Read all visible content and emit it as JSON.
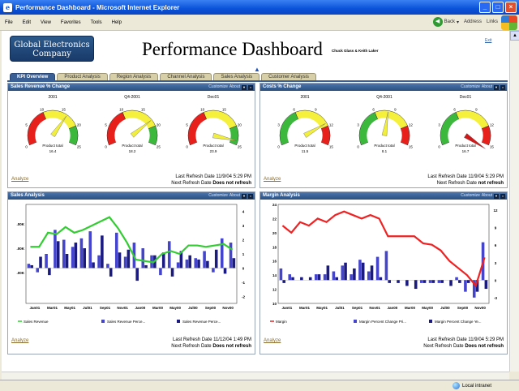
{
  "window": {
    "title": "Performance Dashboard - Microsoft Internet Explorer",
    "minimize": "_",
    "maximize": "□",
    "close": "×"
  },
  "menu": [
    "File",
    "Edit",
    "View",
    "Favorites",
    "Tools",
    "Help"
  ],
  "toolbar": {
    "back": "Back",
    "address": "Address",
    "links": "Links"
  },
  "status": {
    "zone": "Local intranet"
  },
  "page": {
    "logo": "Global Electronics Company",
    "title": "Performance Dashboard",
    "authors": "Chuck Glass & Keith Laker",
    "exit": "Exit",
    "tabs": [
      "KPI Overview",
      "Product Analysis",
      "Region Analysis",
      "Channel Analysis",
      "Sales Analysis",
      "Customer Analysis"
    ]
  },
  "panels": {
    "sales_rev": {
      "title": "Sales Revenue % Change",
      "customize": "Customize",
      "about": "About",
      "analyze": "Analyze",
      "refresh1": "Last Refresh Date 11/9/04 5:29 PM",
      "refresh2_prefix": "Next Refresh Date",
      "refresh2_bold": "Does not refresh"
    },
    "costs": {
      "title": "Costs % Change",
      "customize": "Customize",
      "about": "About",
      "analyze": "Analyze",
      "refresh1": "Last Refresh Date 11/9/04 5:29 PM",
      "refresh2_prefix": "Next Refresh Date",
      "refresh2_bold": "not refresh"
    },
    "sales_analysis": {
      "title": "Sales Analysis",
      "customize": "Customize",
      "about": "About",
      "analyze": "Analyze",
      "refresh1": "Last Refresh Date 11/12/04 1:49 PM",
      "refresh2_prefix": "Next Refresh Date",
      "refresh2_bold": "Does not refresh"
    },
    "margin_analysis": {
      "title": "Margin Analysis",
      "customize": "Customize",
      "about": "About",
      "analyze": "Analyze",
      "refresh1": "Last Refresh Date 11/9/04 5:29 PM",
      "refresh2_prefix": "Next Refresh Date",
      "refresh2_bold": "Does not refresh"
    }
  },
  "chart_data": [
    {
      "type": "gauge",
      "panel": "Sales Revenue % Change",
      "label": "2001",
      "ticks": [
        "0",
        "5",
        "10",
        "15",
        "20",
        "25"
      ],
      "caption": "Product total",
      "value": 16.4,
      "value_text": "16.4",
      "max": 25
    },
    {
      "type": "gauge",
      "panel": "Sales Revenue % Change",
      "label": "Q4-2001",
      "ticks": [
        "0",
        "5",
        "10",
        "15",
        "20",
        "25"
      ],
      "caption": "Product total",
      "value": 18.2,
      "value_text": "18.2",
      "max": 25
    },
    {
      "type": "gauge",
      "panel": "Sales Revenue % Change",
      "label": "Dec01",
      "ticks": [
        "0",
        "5",
        "10",
        "15",
        "20",
        "25"
      ],
      "caption": "Product total",
      "value": 23.9,
      "value_text": "23.9",
      "max": 25
    },
    {
      "type": "gauge",
      "panel": "Costs % Change",
      "label": "2001",
      "ticks": [
        "0",
        "3",
        "6",
        "9",
        "12",
        "15"
      ],
      "caption": "Product total",
      "value": 11.5,
      "value_text": "11.5",
      "max": 15
    },
    {
      "type": "gauge",
      "panel": "Costs % Change",
      "label": "Q4-2001",
      "ticks": [
        "0",
        "3",
        "6",
        "9",
        "12",
        "15"
      ],
      "caption": "Product total",
      "value": 8.1,
      "value_text": "8.1",
      "max": 15
    },
    {
      "type": "gauge",
      "panel": "Costs % Change",
      "label": "Dec01",
      "ticks": [
        "0",
        "3",
        "6",
        "9",
        "12",
        "15"
      ],
      "caption": "Product total",
      "value": 16.7,
      "value_text": "16.7",
      "max": 15
    },
    {
      "type": "bar+line",
      "panel": "Sales Analysis",
      "categories": [
        "Jan01",
        "Mar01",
        "May01",
        "Jul01",
        "Sep01",
        "Nov01",
        "Jan00",
        "Mar00",
        "May00",
        "Jul00",
        "Sep00",
        "Nov00"
      ],
      "left_ticks": [
        ".00K",
        ".00K",
        ".00K"
      ],
      "right_ticks": [
        "4",
        "3",
        "2",
        "1",
        "0",
        "-1",
        "-2"
      ],
      "ylim_right": [
        -2.5,
        4.5
      ],
      "line": {
        "name": "Sales Revenue",
        "color": "#33cc33",
        "values": [
          1.5,
          1.5,
          2.5,
          2.4,
          2.9,
          2.5,
          2.7,
          3.0,
          3.3,
          3.6,
          2.8,
          1.8,
          0.6,
          0.5,
          0.4,
          1.0,
          1.2,
          1.0,
          1.6,
          1.6,
          1.5,
          1.6,
          1.7,
          1.3
        ]
      },
      "bars1": {
        "name": "Sales Revenue Perce...",
        "color": "#4444cc",
        "values": [
          0.3,
          -0.3,
          1.0,
          2.7,
          2.0,
          1.5,
          2.1,
          2.6,
          0.9,
          0.3,
          2.5,
          0.8,
          1.8,
          1.4,
          0.9,
          -0.5,
          1.9,
          0.4,
          0.6,
          0.7,
          1.2,
          -0.3,
          2.1,
          1.8
        ]
      },
      "bars2": {
        "name": "Sales Revenue Perce...",
        "color": "#1a1a80",
        "values": [
          0.2,
          0.8,
          -0.5,
          1.9,
          1.0,
          1.8,
          1.4,
          0.4,
          2.3,
          -0.6,
          1.1,
          1.3,
          -0.9,
          0.2,
          0.9,
          1.1,
          -0.6,
          1.2,
          0.9,
          0.6,
          0.5,
          1.3,
          -0.4,
          0.7
        ]
      }
    },
    {
      "type": "bar+line",
      "panel": "Margin Analysis",
      "categories": [
        "Jan01",
        "Mar01",
        "May01",
        "Jul01",
        "Sep01",
        "Nov01",
        "Jan00",
        "Mar00",
        "May00",
        "Jul00",
        "Sep00",
        "Nov00"
      ],
      "left_ticks": [
        "24",
        "22",
        "20",
        "18",
        "16",
        "14",
        "12",
        "10"
      ],
      "right_ticks": [
        "12",
        "9",
        "6",
        "3",
        "0",
        "-3"
      ],
      "ylim_left": [
        10,
        24
      ],
      "ylim_right": [
        -4,
        13
      ],
      "line": {
        "name": "Margin",
        "color": "#ee2222",
        "values": [
          21.0,
          20.0,
          21.5,
          21.0,
          22.0,
          21.5,
          22.5,
          23.0,
          22.5,
          22.0,
          22.5,
          22.0,
          19.5,
          19.5,
          19.5,
          19.5,
          18.5,
          18.3,
          17.5,
          16.0,
          15.0,
          14.0,
          12.5,
          16.5
        ]
      },
      "bars1": {
        "name": "Margin Percent Change Pri...",
        "color": "#4444cc",
        "values": [
          2.0,
          1.0,
          0.0,
          0.0,
          1.0,
          1.0,
          1.5,
          2.5,
          1.0,
          3.5,
          1.5,
          4.0,
          5.0,
          0.0,
          0.0,
          0.0,
          -0.5,
          -0.5,
          -0.5,
          0.0,
          0.5,
          -2.0,
          -3.0,
          6.5
        ]
      },
      "bars2": {
        "name": "Margin Percent Change Ye...",
        "color": "#1a1a80",
        "values": [
          -0.5,
          0.5,
          0.5,
          0.5,
          1.0,
          2.5,
          0.5,
          3.0,
          2.0,
          3.0,
          2.5,
          0.5,
          -0.5,
          -0.5,
          -1.0,
          -1.5,
          -0.5,
          -0.5,
          -0.5,
          -1.0,
          -0.5,
          -0.5,
          -2.0,
          -1.5
        ]
      }
    }
  ]
}
